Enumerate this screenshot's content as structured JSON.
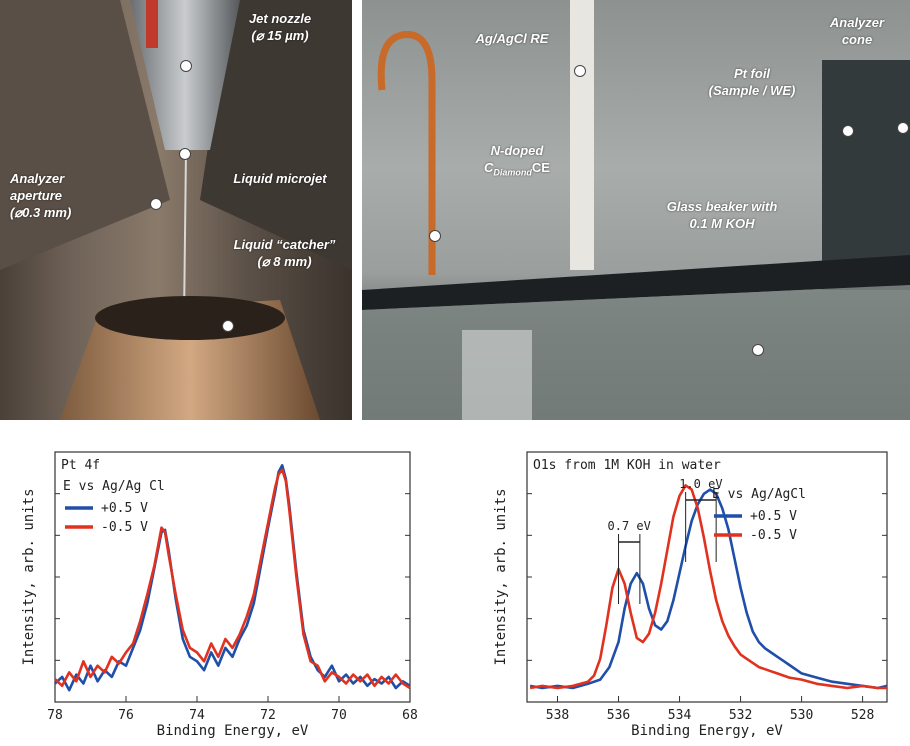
{
  "photos": {
    "left": {
      "jet_nozzle": "Jet nozzle",
      "jet_nozzle_size": "(⌀ 15 µm)",
      "analyzer_aperture": "Analyzer aperture",
      "analyzer_aperture_size": "(⌀0.3 mm)",
      "liquid_microjet": "Liquid microjet",
      "liquid_catcher": "Liquid “catcher”",
      "liquid_catcher_size": "(⌀ 8 mm)"
    },
    "right": {
      "re": "Ag/AgCl RE",
      "ce_line1": "N-doped",
      "ce_c": "C",
      "ce_sub": "Diamond",
      "ce_suffix": "CE",
      "pt_line1": "Pt foil",
      "pt_line2": "(Sample / WE)",
      "cone_line1": "Analyzer",
      "cone_line2": "cone",
      "beaker_line1": "Glass beaker with",
      "beaker_line2": "0.1 M KOH"
    }
  },
  "colors": {
    "blue": "#1f4fa8",
    "red": "#e0321e"
  },
  "chart_data": [
    {
      "type": "line",
      "title": "Pt 4f",
      "legend_title": "E vs Ag/Ag Cl",
      "legend_position": "top-left",
      "xlabel": "Binding Energy, eV",
      "ylabel": "Intensity, arb. units",
      "xlim": [
        78,
        68
      ],
      "ylim": [
        0,
        1.06
      ],
      "x_ticks": [
        "78",
        "76",
        "74",
        "72",
        "70",
        "68"
      ],
      "x_tick_values": [
        78,
        76,
        74,
        72,
        70,
        68
      ],
      "series": [
        {
          "name": "+0.5 V",
          "color": "#1f4fa8",
          "x": [
            78.0,
            77.8,
            77.6,
            77.4,
            77.2,
            77.0,
            76.8,
            76.6,
            76.4,
            76.2,
            76.0,
            75.8,
            75.6,
            75.4,
            75.2,
            75.0,
            74.9,
            74.8,
            74.6,
            74.4,
            74.2,
            74.0,
            73.8,
            73.6,
            73.4,
            73.2,
            73.0,
            72.8,
            72.6,
            72.4,
            72.2,
            72.0,
            71.8,
            71.7,
            71.6,
            71.5,
            71.4,
            71.2,
            71.0,
            70.8,
            70.6,
            70.4,
            70.2,
            70.0,
            69.8,
            69.6,
            69.4,
            69.2,
            69.0,
            68.8,
            68.6,
            68.4,
            68.2,
            68.0
          ],
          "y": [
            0.02,
            0.05,
            -0.01,
            0.06,
            0.02,
            0.1,
            0.03,
            0.08,
            0.05,
            0.12,
            0.1,
            0.18,
            0.26,
            0.38,
            0.54,
            0.7,
            0.71,
            0.62,
            0.4,
            0.22,
            0.14,
            0.12,
            0.08,
            0.16,
            0.1,
            0.18,
            0.14,
            0.22,
            0.28,
            0.38,
            0.55,
            0.72,
            0.88,
            0.97,
            1.0,
            0.94,
            0.82,
            0.52,
            0.26,
            0.14,
            0.08,
            0.05,
            0.1,
            0.03,
            0.06,
            0.02,
            0.05,
            0.01,
            0.04,
            0.02,
            0.05,
            0.0,
            0.03,
            0.01
          ]
        },
        {
          "name": "-0.5 V",
          "color": "#e0321e",
          "x": [
            78.0,
            77.8,
            77.6,
            77.4,
            77.2,
            77.0,
            76.8,
            76.6,
            76.4,
            76.2,
            76.0,
            75.8,
            75.6,
            75.4,
            75.2,
            75.0,
            74.9,
            74.8,
            74.6,
            74.4,
            74.2,
            74.0,
            73.8,
            73.6,
            73.4,
            73.2,
            73.0,
            72.8,
            72.6,
            72.4,
            72.2,
            72.0,
            71.8,
            71.7,
            71.6,
            71.5,
            71.4,
            71.2,
            71.0,
            70.8,
            70.6,
            70.4,
            70.2,
            70.0,
            69.8,
            69.6,
            69.4,
            69.2,
            69.0,
            68.8,
            68.6,
            68.4,
            68.2,
            68.0
          ],
          "y": [
            0.04,
            0.01,
            0.07,
            0.03,
            0.12,
            0.05,
            0.1,
            0.07,
            0.14,
            0.11,
            0.16,
            0.2,
            0.3,
            0.42,
            0.55,
            0.72,
            0.7,
            0.6,
            0.42,
            0.26,
            0.18,
            0.16,
            0.12,
            0.2,
            0.14,
            0.22,
            0.18,
            0.24,
            0.32,
            0.42,
            0.58,
            0.74,
            0.9,
            0.96,
            0.98,
            0.93,
            0.8,
            0.5,
            0.24,
            0.12,
            0.1,
            0.03,
            0.07,
            0.05,
            0.02,
            0.06,
            0.03,
            0.06,
            0.01,
            0.05,
            0.02,
            0.06,
            0.02,
            0.0
          ]
        }
      ]
    },
    {
      "type": "line",
      "title": "O1s from 1M KOH in water",
      "legend_title": "E vs Ag/AgCl",
      "legend_position": "top-right",
      "xlabel": "Binding Energy, eV",
      "ylabel": "Intensity, arb. units",
      "xlim": [
        539,
        527.2
      ],
      "ylim": [
        0,
        1.13
      ],
      "x_ticks": [
        "538",
        "536",
        "534",
        "532",
        "530",
        "528"
      ],
      "x_tick_values": [
        538,
        536,
        534,
        532,
        530,
        528
      ],
      "annotations": [
        {
          "text": "0.7 eV",
          "from": 536.0,
          "to": 535.3
        },
        {
          "text": "1.0 eV",
          "from": 533.8,
          "to": 532.8
        }
      ],
      "series": [
        {
          "name": "+0.5 V",
          "color": "#1f4fa8",
          "x": [
            538.9,
            538.5,
            538.0,
            537.5,
            537.0,
            536.6,
            536.3,
            536.0,
            535.8,
            535.6,
            535.4,
            535.2,
            535.0,
            534.8,
            534.6,
            534.4,
            534.2,
            534.0,
            533.8,
            533.6,
            533.4,
            533.2,
            533.0,
            532.8,
            532.6,
            532.4,
            532.2,
            532.0,
            531.8,
            531.6,
            531.4,
            531.2,
            531.0,
            530.8,
            530.6,
            530.4,
            530.2,
            530.0,
            529.5,
            529.0,
            528.5,
            528.0,
            527.5,
            527.2
          ],
          "y": [
            0.01,
            0.0,
            0.01,
            0.0,
            0.02,
            0.04,
            0.1,
            0.22,
            0.38,
            0.5,
            0.55,
            0.5,
            0.38,
            0.3,
            0.28,
            0.32,
            0.42,
            0.55,
            0.68,
            0.8,
            0.88,
            0.93,
            0.95,
            0.93,
            0.86,
            0.76,
            0.62,
            0.48,
            0.36,
            0.27,
            0.22,
            0.19,
            0.17,
            0.15,
            0.13,
            0.11,
            0.09,
            0.07,
            0.05,
            0.03,
            0.02,
            0.01,
            0.0,
            0.01
          ]
        },
        {
          "name": "-0.5 V",
          "color": "#e0321e",
          "x": [
            538.9,
            538.5,
            538.0,
            537.5,
            537.0,
            536.8,
            536.6,
            536.4,
            536.2,
            536.0,
            535.8,
            535.6,
            535.4,
            535.2,
            535.0,
            534.8,
            534.6,
            534.4,
            534.2,
            534.0,
            533.8,
            533.6,
            533.4,
            533.2,
            533.0,
            532.8,
            532.6,
            532.4,
            532.2,
            532.0,
            531.8,
            531.6,
            531.4,
            531.2,
            531.0,
            530.8,
            530.6,
            530.4,
            530.0,
            529.5,
            529.0,
            528.5,
            528.0,
            527.5,
            527.2
          ],
          "y": [
            0.0,
            0.01,
            0.0,
            0.01,
            0.03,
            0.06,
            0.14,
            0.3,
            0.48,
            0.57,
            0.5,
            0.36,
            0.24,
            0.22,
            0.26,
            0.36,
            0.5,
            0.66,
            0.82,
            0.92,
            0.97,
            0.95,
            0.86,
            0.72,
            0.56,
            0.42,
            0.32,
            0.25,
            0.2,
            0.16,
            0.14,
            0.12,
            0.1,
            0.09,
            0.08,
            0.07,
            0.06,
            0.05,
            0.04,
            0.02,
            0.01,
            0.0,
            0.01,
            0.0,
            0.0
          ]
        }
      ]
    }
  ]
}
